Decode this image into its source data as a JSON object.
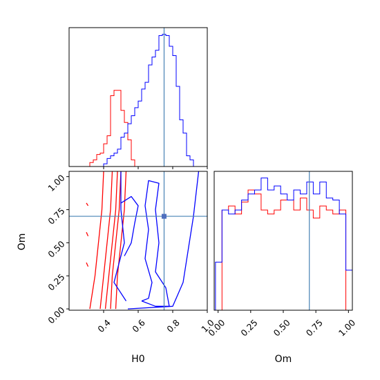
{
  "chart_data": {
    "type": "corner",
    "parameters": [
      "H0",
      "Om"
    ],
    "axis_labels": {
      "x_left": "H0",
      "x_right": "Om",
      "y_lower": "Om"
    },
    "truth": {
      "H0": 0.75,
      "Om": 0.7
    },
    "truth_color": "#4682b4",
    "marker": {
      "H0": 0.75,
      "Om": 0.7,
      "color": "#4f6fbe"
    },
    "series": [
      {
        "color": "#ff0000"
      },
      {
        "color": "#0000ff"
      }
    ],
    "panels": [
      {
        "id": "hist_H0",
        "type": "step-histogram",
        "xlim": [
          0.2,
          1.0
        ],
        "xticks": [
          0.4,
          0.6,
          0.8,
          1.0
        ],
        "ytick_labels": false,
        "bin_edges": [
          0.2,
          0.22,
          0.24,
          0.26,
          0.28,
          0.3,
          0.32,
          0.34,
          0.36,
          0.38,
          0.4,
          0.42,
          0.44,
          0.46,
          0.48,
          0.5,
          0.52,
          0.54,
          0.56,
          0.58,
          0.6,
          0.62,
          0.64,
          0.66,
          0.68,
          0.7,
          0.72,
          0.74,
          0.76,
          0.78,
          0.8,
          0.82,
          0.84,
          0.86,
          0.88,
          0.9,
          0.92,
          0.94,
          0.96,
          0.98,
          1.0
        ],
        "series_counts": [
          [
            0,
            0,
            0,
            0,
            0,
            0,
            3,
            5,
            9,
            10,
            17,
            23,
            53,
            57,
            57,
            42,
            33,
            20,
            5,
            0,
            0,
            0,
            0,
            0,
            0,
            0,
            0,
            0,
            0,
            0,
            0,
            0,
            0,
            0,
            0,
            0,
            0,
            0,
            0,
            0
          ],
          [
            0,
            0,
            0,
            0,
            0,
            0,
            0,
            0,
            0,
            0,
            2,
            6,
            8,
            10,
            13,
            22,
            25,
            32,
            38,
            44,
            49,
            58,
            63,
            76,
            82,
            87,
            98,
            99,
            98,
            90,
            83,
            60,
            35,
            25,
            8,
            5,
            0,
            0,
            0,
            0
          ]
        ]
      },
      {
        "id": "contour_H0_Om",
        "type": "contour",
        "xlim": [
          0.2,
          1.0
        ],
        "ylim": [
          -0.01,
          1.04
        ],
        "xticks": [
          0.4,
          0.6,
          0.8,
          1.0
        ],
        "yticks": [
          0.0,
          0.25,
          0.5,
          0.75,
          1.0
        ],
        "series_contours": [
          [
            [
              [
                0.32,
                0.0
              ],
              [
                0.35,
                0.25
              ],
              [
                0.37,
                0.5
              ],
              [
                0.39,
                0.75
              ],
              [
                0.4,
                1.04
              ]
            ],
            [
              [
                0.38,
                0.0
              ],
              [
                0.4,
                0.25
              ],
              [
                0.42,
                0.5
              ],
              [
                0.44,
                0.75
              ],
              [
                0.45,
                1.04
              ]
            ],
            [
              [
                0.41,
                0.0
              ],
              [
                0.43,
                0.25
              ],
              [
                0.45,
                0.5
              ],
              [
                0.47,
                0.75
              ],
              [
                0.48,
                1.04
              ]
            ],
            [
              [
                0.44,
                0.0
              ],
              [
                0.45,
                0.25
              ],
              [
                0.47,
                0.5
              ],
              [
                0.49,
                0.75
              ],
              [
                0.5,
                1.04
              ]
            ],
            [
              [
                0.47,
                0.0
              ],
              [
                0.48,
                0.25
              ],
              [
                0.5,
                0.5
              ],
              [
                0.52,
                0.75
              ],
              [
                0.53,
                1.04
              ]
            ],
            [
              [
                0.3,
                0.8
              ],
              [
                0.31,
                0.78
              ]
            ],
            [
              [
                0.3,
                0.58
              ],
              [
                0.31,
                0.55
              ]
            ],
            [
              [
                0.3,
                0.35
              ],
              [
                0.31,
                0.32
              ]
            ]
          ],
          [
            [
              [
                0.62,
                0.06
              ],
              [
                0.66,
                0.08
              ],
              [
                0.68,
                0.2
              ],
              [
                0.64,
                0.38
              ],
              [
                0.66,
                0.6
              ],
              [
                0.64,
                0.78
              ],
              [
                0.66,
                0.97
              ],
              [
                0.72,
                0.95
              ],
              [
                0.7,
                0.75
              ],
              [
                0.72,
                0.5
              ],
              [
                0.7,
                0.28
              ],
              [
                0.76,
                0.16
              ],
              [
                0.78,
                0.02
              ],
              [
                0.7,
                0.02
              ],
              [
                0.62,
                0.06
              ]
            ],
            [
              [
                0.54,
                0.0
              ],
              [
                0.8,
                0.02
              ],
              [
                0.86,
                0.2
              ],
              [
                0.89,
                0.45
              ],
              [
                0.92,
                0.7
              ],
              [
                0.95,
                1.04
              ]
            ],
            [
              [
                0.53,
                0.06
              ],
              [
                0.46,
                0.2
              ],
              [
                0.52,
                0.5
              ],
              [
                0.5,
                0.75
              ],
              [
                0.5,
                1.04
              ]
            ],
            [
              [
                0.5,
                0.8
              ],
              [
                0.56,
                0.85
              ],
              [
                0.6,
                0.78
              ],
              [
                0.58,
                0.65
              ],
              [
                0.56,
                0.5
              ],
              [
                0.52,
                0.4
              ]
            ]
          ]
        ]
      },
      {
        "id": "hist_Om",
        "type": "step-histogram",
        "xlim": [
          -0.03,
          1.03
        ],
        "xticks": [
          0.0,
          0.25,
          0.5,
          0.75,
          1.0
        ],
        "ytick_labels": false,
        "bin_edges": [
          -0.02,
          0.03,
          0.08,
          0.13,
          0.18,
          0.23,
          0.28,
          0.33,
          0.38,
          0.43,
          0.48,
          0.53,
          0.58,
          0.63,
          0.68,
          0.73,
          0.78,
          0.83,
          0.88,
          0.93,
          0.98,
          1.03
        ],
        "series_counts": [
          [
            0,
            50,
            52,
            48,
            54,
            60,
            58,
            50,
            48,
            50,
            55,
            55,
            50,
            56,
            50,
            46,
            52,
            50,
            48,
            50,
            0
          ],
          [
            24,
            50,
            48,
            50,
            55,
            58,
            60,
            66,
            60,
            62,
            58,
            55,
            60,
            58,
            64,
            58,
            64,
            56,
            55,
            48,
            20
          ]
        ]
      }
    ]
  }
}
